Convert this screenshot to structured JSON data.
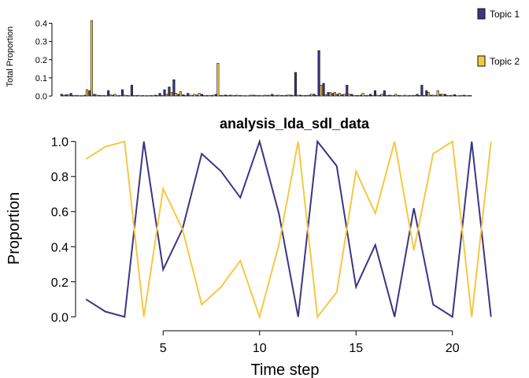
{
  "colors": {
    "topic1": "#3b3585",
    "topic2": "#f5c842",
    "axis": "#000000"
  },
  "chart_data": [
    {
      "type": "bar",
      "ylabel": "Total Proportion",
      "ylim": [
        0,
        0.45
      ],
      "yticks": [
        "0.0",
        "0.1",
        "0.2",
        "0.3",
        "0.4"
      ],
      "ytick_values": [
        0,
        0.1,
        0.2,
        0.3,
        0.4
      ],
      "legend_placement": "right",
      "series": [
        {
          "name": "Topic 1",
          "values": [
            0.01,
            0.008,
            0.015,
            0.003,
            0.002,
            0.005,
            0.03,
            0.01,
            0.004,
            0.003,
            0.03,
            0.005,
            0.002,
            0.035,
            0.003,
            0.06,
            0.003,
            0.002,
            0.002,
            0.003,
            0.005,
            0.015,
            0.035,
            0.05,
            0.09,
            0.01,
            0.007,
            0.015,
            0.004,
            0.005,
            0.01,
            0.003,
            0.003,
            0.01,
            0.004,
            0.006,
            0.005,
            0.003,
            0.003,
            0.002,
            0.002,
            0.005,
            0.003,
            0.002,
            0.004,
            0.01,
            0.004,
            0.003,
            0.004,
            0.005,
            0.13,
            0.005,
            0.003,
            0.005,
            0.01,
            0.25,
            0.07,
            0.02,
            0.015,
            0.01,
            0.008,
            0.06,
            0.01,
            0.003,
            0.005,
            0.003,
            0.01,
            0.03,
            0.004,
            0.03,
            0.005,
            0.003,
            0.004,
            0.002,
            0.002,
            0.003,
            0.01,
            0.06,
            0.03,
            0.005,
            0.004,
            0.01,
            0.01,
            0.003,
            0.008,
            0.002,
            0.005,
            0.003
          ]
        },
        {
          "name": "Topic 2",
          "values": [
            0.005,
            0.006,
            0.003,
            0.004,
            0.002,
            0.035,
            0.415,
            0.006,
            0.003,
            0.002,
            0.008,
            0.01,
            0.003,
            0.005,
            0.002,
            0.003,
            0.004,
            0.003,
            0.002,
            0.002,
            0.003,
            0.003,
            0.01,
            0.02,
            0.015,
            0.025,
            0.003,
            0.005,
            0.01,
            0.015,
            0.003,
            0.004,
            0.005,
            0.18,
            0.003,
            0.003,
            0.004,
            0.005,
            0.003,
            0.002,
            0.005,
            0.004,
            0.003,
            0.005,
            0.004,
            0.003,
            0.005,
            0.003,
            0.006,
            0.004,
            0.005,
            0.003,
            0.004,
            0.01,
            0.003,
            0.06,
            0.008,
            0.02,
            0.02,
            0.015,
            0.01,
            0.01,
            0.004,
            0.003,
            0.015,
            0.004,
            0.003,
            0.005,
            0.01,
            0.003,
            0.004,
            0.01,
            0.003,
            0.005,
            0.003,
            0.004,
            0.003,
            0.003,
            0.02,
            0.005,
            0.03,
            0.01,
            0.003,
            0.004,
            0.002,
            0.003,
            0.002,
            0.003
          ]
        }
      ]
    },
    {
      "type": "line",
      "title": "analysis_lda_sdl_data",
      "xlabel": "Time step",
      "ylabel": "Proportion",
      "xlim": [
        0.5,
        22.5
      ],
      "ylim": [
        -0.03,
        1.03
      ],
      "xticks": [
        "5",
        "10",
        "15",
        "20"
      ],
      "xtick_values": [
        5,
        10,
        15,
        20
      ],
      "yticks": [
        "0.0",
        "0.2",
        "0.4",
        "0.6",
        "0.8",
        "1.0"
      ],
      "ytick_values": [
        0,
        0.2,
        0.4,
        0.6,
        0.8,
        1.0
      ],
      "x": [
        1,
        2,
        3,
        4,
        5,
        6,
        7,
        8,
        9,
        10,
        11,
        12,
        13,
        14,
        15,
        16,
        17,
        18,
        19,
        20,
        21,
        22
      ],
      "series": [
        {
          "name": "Topic 1",
          "values": [
            0.1,
            0.03,
            0.0,
            1.0,
            0.27,
            0.5,
            0.93,
            0.83,
            0.68,
            1.0,
            0.59,
            0.0,
            1.0,
            0.86,
            0.17,
            0.41,
            0.0,
            0.62,
            0.07,
            0.0,
            1.0,
            0.0
          ]
        },
        {
          "name": "Topic 2",
          "values": [
            0.9,
            0.97,
            1.0,
            0.0,
            0.73,
            0.5,
            0.07,
            0.17,
            0.32,
            0.0,
            0.41,
            1.0,
            0.0,
            0.14,
            0.83,
            0.59,
            1.0,
            0.38,
            0.93,
            1.0,
            0.0,
            1.0
          ]
        }
      ]
    }
  ]
}
